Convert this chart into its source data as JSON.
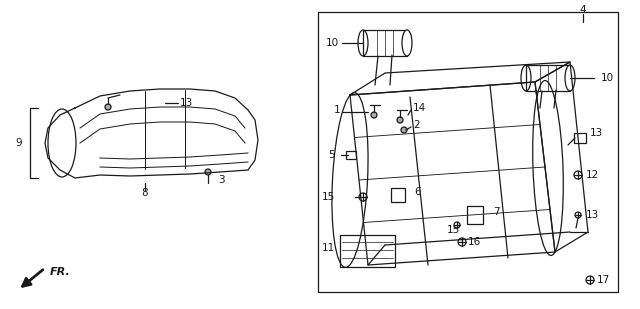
{
  "bg_color": "#ffffff",
  "fig_width": 6.4,
  "fig_height": 3.09,
  "dpi": 100,
  "line_color": "#1a1a1a",
  "lw": 0.9,
  "fs": 7.5
}
